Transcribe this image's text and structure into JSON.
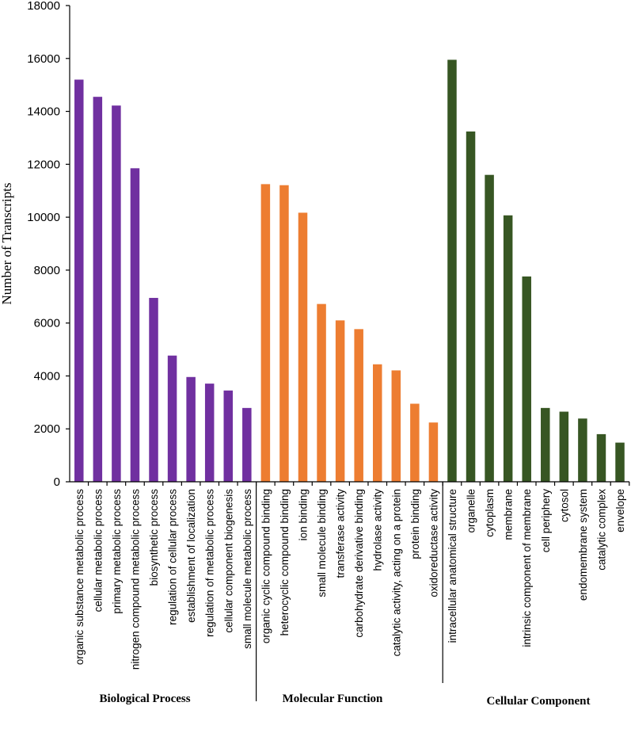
{
  "chart_data": {
    "type": "bar",
    "ylabel": "Number of Transcripts",
    "xlabel": "",
    "ylim": [
      0,
      18000
    ],
    "yticks": [
      0,
      2000,
      4000,
      6000,
      8000,
      10000,
      12000,
      14000,
      16000,
      18000
    ],
    "grid": false,
    "groups": [
      {
        "name": "Biological Process",
        "color": "#7030a0",
        "categories": [
          "organic substance metabolic process",
          "cellular metabolic process",
          "primary metabolic process",
          "nitrogen compound metabolic process",
          "biosynthetic process",
          "regulation of cellular process",
          "establishment of localization",
          "regulation of metabolic process",
          "cellular component  biogenesis",
          "small molecule metabolic process"
        ],
        "values": [
          15200,
          14550,
          14220,
          11850,
          6950,
          4770,
          3960,
          3710,
          3450,
          2790
        ]
      },
      {
        "name": "Molecular Function",
        "color": "#ed7d31",
        "categories": [
          "organic cyclic compound binding",
          "heterocyclic compound binding",
          "ion binding",
          "small molecule binding",
          "transferase activity",
          "carbohydrate derivative binding",
          "hydrolase activity",
          "catalytic activity, acting on a protein",
          "protein binding",
          "oxidoreductase activity"
        ],
        "values": [
          11250,
          11210,
          10170,
          6720,
          6100,
          5770,
          4440,
          4210,
          2950,
          2240
        ]
      },
      {
        "name": "Cellular Component",
        "color": "#375623",
        "categories": [
          "intracellular anatomical structure",
          "organelle",
          "cytoplasm",
          "membrane",
          "intrinsic component of membrane",
          "cell periphery",
          "cytosol",
          "endomembrane system",
          "catalytic complex",
          "envelope"
        ],
        "values": [
          15950,
          13240,
          11600,
          10070,
          7760,
          2790,
          2650,
          2390,
          1800,
          1480
        ]
      }
    ]
  }
}
